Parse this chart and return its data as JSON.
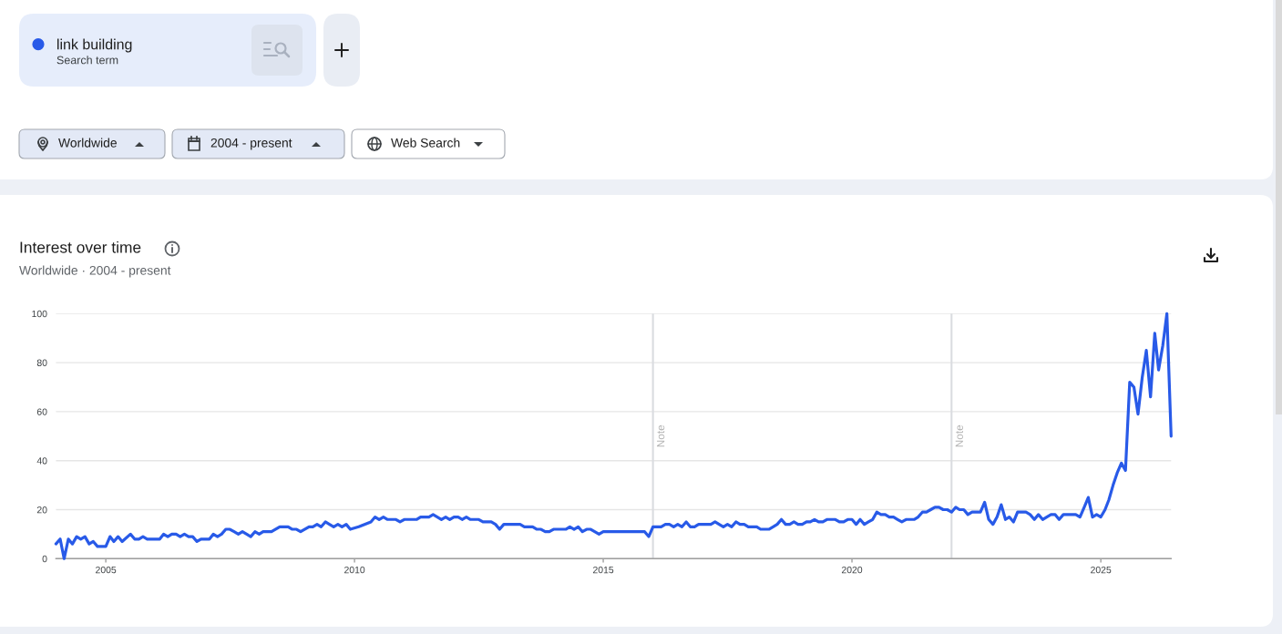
{
  "chart_data": {
    "type": "line",
    "title": "Interest over time",
    "subtitle": "Worldwide · 2004 - present",
    "annotations": [
      "Search term",
      "Worldwide",
      "2004 - present",
      "Web Search"
    ],
    "series": [
      {
        "name": "link building",
        "color": "#285ae8",
        "x": [
          "2004-01",
          "2004-02",
          "2004-03",
          "2004-04",
          "2004-05",
          "2004-06",
          "2004-07",
          "2004-08",
          "2004-09",
          "2004-10",
          "2004-11",
          "2005-01",
          "2005-02",
          "2005-03",
          "2005-04",
          "2005-05",
          "2005-07",
          "2005-08",
          "2005-09",
          "2005-10",
          "2005-11",
          "2006-02",
          "2006-03",
          "2006-04",
          "2006-05",
          "2006-06",
          "2006-07",
          "2006-08",
          "2006-09",
          "2006-10",
          "2006-11",
          "2006-12",
          "2007-02",
          "2007-03",
          "2007-04",
          "2007-05",
          "2007-06",
          "2007-07",
          "2007-08",
          "2007-09",
          "2007-10",
          "2007-11",
          "2007-12",
          "2008-01",
          "2008-02",
          "2008-03",
          "2008-05",
          "2008-07",
          "2008-09",
          "2008-10",
          "2008-11",
          "2008-12",
          "2009-02",
          "2009-03",
          "2009-04",
          "2009-05",
          "2009-06",
          "2009-07",
          "2009-08",
          "2009-09",
          "2009-10",
          "2009-11",
          "2009-12",
          "2010-02",
          "2010-05",
          "2010-06",
          "2010-07",
          "2010-08",
          "2010-09",
          "2010-11",
          "2010-12",
          "2011-01",
          "2011-04",
          "2011-05",
          "2011-07",
          "2011-08",
          "2011-09",
          "2011-10",
          "2011-11",
          "2011-12",
          "2012-01",
          "2012-02",
          "2012-03",
          "2012-04",
          "2012-05",
          "2012-07",
          "2012-08",
          "2012-10",
          "2012-11",
          "2012-12",
          "2013-01",
          "2013-05",
          "2013-06",
          "2013-08",
          "2013-09",
          "2013-10",
          "2013-11",
          "2013-12",
          "2014-01",
          "2014-04",
          "2014-05",
          "2014-06",
          "2014-07",
          "2014-08",
          "2014-09",
          "2014-10",
          "2014-12",
          "2015-01",
          "2015-11",
          "2015-12",
          "2016-01",
          "2016-03",
          "2016-04",
          "2016-05",
          "2016-06",
          "2016-07",
          "2016-08",
          "2016-09",
          "2016-10",
          "2016-11",
          "2016-12",
          "2017-03",
          "2017-04",
          "2017-05",
          "2017-06",
          "2017-07",
          "2017-08",
          "2017-09",
          "2017-10",
          "2017-11",
          "2017-12",
          "2018-02",
          "2018-03",
          "2018-05",
          "2018-06",
          "2018-07",
          "2018-08",
          "2018-09",
          "2018-10",
          "2018-11",
          "2018-12",
          "2019-01",
          "2019-02",
          "2019-03",
          "2019-04",
          "2019-05",
          "2019-06",
          "2019-07",
          "2019-09",
          "2019-10",
          "2019-11",
          "2019-12",
          "2020-01",
          "2020-02",
          "2020-03",
          "2020-04",
          "2020-05",
          "2020-06",
          "2020-07",
          "2020-08",
          "2020-09",
          "2020-10",
          "2020-11",
          "2020-12",
          "2021-01",
          "2021-02",
          "2021-04",
          "2021-05",
          "2021-06",
          "2021-07",
          "2021-08",
          "2021-09",
          "2021-10",
          "2021-11",
          "2021-12",
          "2022-01",
          "2022-02",
          "2022-03",
          "2022-04",
          "2022-05",
          "2022-06",
          "2022-08",
          "2022-09",
          "2022-10",
          "2022-11",
          "2022-12",
          "2023-01",
          "2023-02",
          "2023-03",
          "2023-04",
          "2023-05",
          "2023-07",
          "2023-08",
          "2023-09",
          "2023-10",
          "2023-11",
          "2023-12",
          "2024-01",
          "2024-02",
          "2024-03",
          "2024-04",
          "2024-07",
          "2024-08",
          "2024-09",
          "2024-10",
          "2024-11",
          "2024-12",
          "2025-01",
          "2025-02",
          "2025-03",
          "2025-04",
          "2025-05",
          "2025-06",
          "2025-07",
          "2025-08",
          "2025-09",
          "2025-10",
          "2025-11",
          "2025-12",
          "2026-01",
          "2026-02",
          "2026-03",
          "2026-04",
          "2026-05",
          "2026-06"
        ],
        "values": [
          6,
          8,
          0,
          8,
          6,
          9,
          8,
          9,
          6,
          7,
          5,
          5,
          9,
          7,
          9,
          7,
          10,
          8,
          8,
          9,
          8,
          8,
          10,
          9,
          10,
          10,
          9,
          10,
          9,
          9,
          7,
          8,
          8,
          10,
          9,
          10,
          12,
          12,
          11,
          10,
          11,
          10,
          9,
          11,
          10,
          11,
          11,
          13,
          13,
          12,
          12,
          11,
          13,
          13,
          14,
          13,
          15,
          14,
          13,
          14,
          13,
          14,
          12,
          13,
          15,
          17,
          16,
          17,
          16,
          16,
          15,
          16,
          16,
          17,
          17,
          18,
          17,
          16,
          17,
          16,
          17,
          17,
          16,
          17,
          16,
          16,
          15,
          15,
          14,
          12,
          14,
          14,
          13,
          13,
          12,
          12,
          11,
          11,
          12,
          12,
          13,
          12,
          13,
          11,
          12,
          12,
          10,
          11,
          11,
          9,
          13,
          13,
          14,
          14,
          13,
          14,
          13,
          15,
          13,
          13,
          14,
          14,
          15,
          14,
          13,
          14,
          13,
          15,
          14,
          14,
          13,
          13,
          12,
          12,
          13,
          14,
          16,
          14,
          14,
          15,
          14,
          14,
          15,
          15,
          16,
          15,
          15,
          16,
          16,
          15,
          15,
          16,
          16,
          14,
          16,
          14,
          15,
          16,
          19,
          18,
          18,
          17,
          17,
          16,
          15,
          16,
          16,
          17,
          19,
          19,
          20,
          21,
          21,
          20,
          20,
          19,
          21,
          20,
          20,
          18,
          19,
          19,
          23,
          16,
          14,
          17,
          22,
          16,
          17,
          15,
          19,
          19,
          18,
          16,
          18,
          16,
          17,
          18,
          18,
          16,
          18,
          18,
          17,
          21,
          25,
          17,
          18,
          17,
          20,
          24,
          30,
          35,
          39,
          36,
          72,
          70,
          59,
          74,
          85,
          66,
          92,
          77,
          87,
          100,
          50
        ]
      }
    ],
    "xlim": [
      "2004-01",
      "2026-06"
    ],
    "xticks": [
      "2005",
      "2010",
      "2015",
      "2020",
      "2025"
    ],
    "ylim": [
      0,
      100
    ],
    "yticks": [
      0,
      20,
      40,
      60,
      80,
      100
    ],
    "grid": "y",
    "legend": "top left",
    "line_style": "solid",
    "ref_lines": [
      {
        "axis": "x",
        "value": "2016-01",
        "label": "Note",
        "color": "#dadce0"
      },
      {
        "axis": "x",
        "value": "2022-01",
        "label": "Note",
        "color": "#dadce0"
      }
    ]
  }
}
